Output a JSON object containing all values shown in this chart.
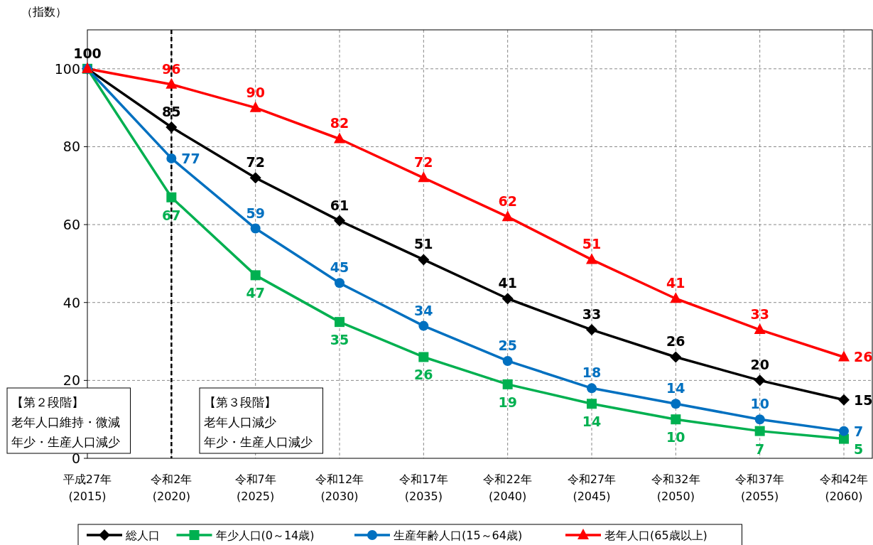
{
  "chart_data": {
    "type": "line",
    "ylabel": "（指数）",
    "categories": [
      "平成27年\n(2015)",
      "令和2年\n(2020)",
      "令和7年\n(2025)",
      "令和12年\n(2030)",
      "令和17年\n(2035)",
      "令和22年\n(2040)",
      "令和27年\n(2045)",
      "令和32年\n(2050)",
      "令和37年\n(2055)",
      "令和42年\n(2060)"
    ],
    "series": [
      {
        "name": "総人口",
        "color": "#000000",
        "marker": "diamond",
        "values": [
          100,
          85,
          72,
          61,
          51,
          41,
          33,
          26,
          20,
          15
        ],
        "value_labels": [
          "100",
          "85",
          "72",
          "61",
          "51",
          "41",
          "33",
          "26",
          "20",
          "15"
        ]
      },
      {
        "name": "年少人口(0～14歳)",
        "color": "#00b050",
        "marker": "square",
        "values": [
          100,
          67,
          47,
          35,
          26,
          19,
          14,
          10,
          7,
          5
        ],
        "value_labels": [
          null,
          "67",
          "47",
          "35",
          "26",
          "19",
          "14",
          "10",
          "7",
          "5"
        ]
      },
      {
        "name": "生産年齢人口(15～64歳)",
        "color": "#0070c0",
        "marker": "circle",
        "values": [
          100,
          77,
          59,
          45,
          34,
          25,
          18,
          14,
          10,
          7
        ],
        "value_labels": [
          null,
          "77",
          "59",
          "45",
          "34",
          "25",
          "18",
          "14",
          "10",
          "7"
        ]
      },
      {
        "name": "老年人口(65歳以上)",
        "color": "#ff0000",
        "marker": "triangle",
        "values": [
          100,
          96,
          90,
          82,
          72,
          62,
          51,
          41,
          33,
          26
        ],
        "value_labels": [
          null,
          "96",
          "90",
          "82",
          "72",
          "62",
          "51",
          "41",
          "33",
          "26"
        ]
      }
    ],
    "ylim": [
      0,
      110
    ],
    "yticks": [
      0,
      20,
      40,
      60,
      80,
      100
    ],
    "grid": true,
    "legend": "bottom",
    "line_style": "solid",
    "ref_lines": [
      {
        "axis": "x",
        "value": "令和2年\n(2020)",
        "label": null,
        "color": "#000000",
        "line_style": "dashed"
      }
    ],
    "annotations": [
      "【第２段階】",
      "老年人口維持・微減",
      "年少・生産人口減少",
      "【第３段階】",
      "老年人口減少",
      "年少・生産人口減少"
    ]
  }
}
